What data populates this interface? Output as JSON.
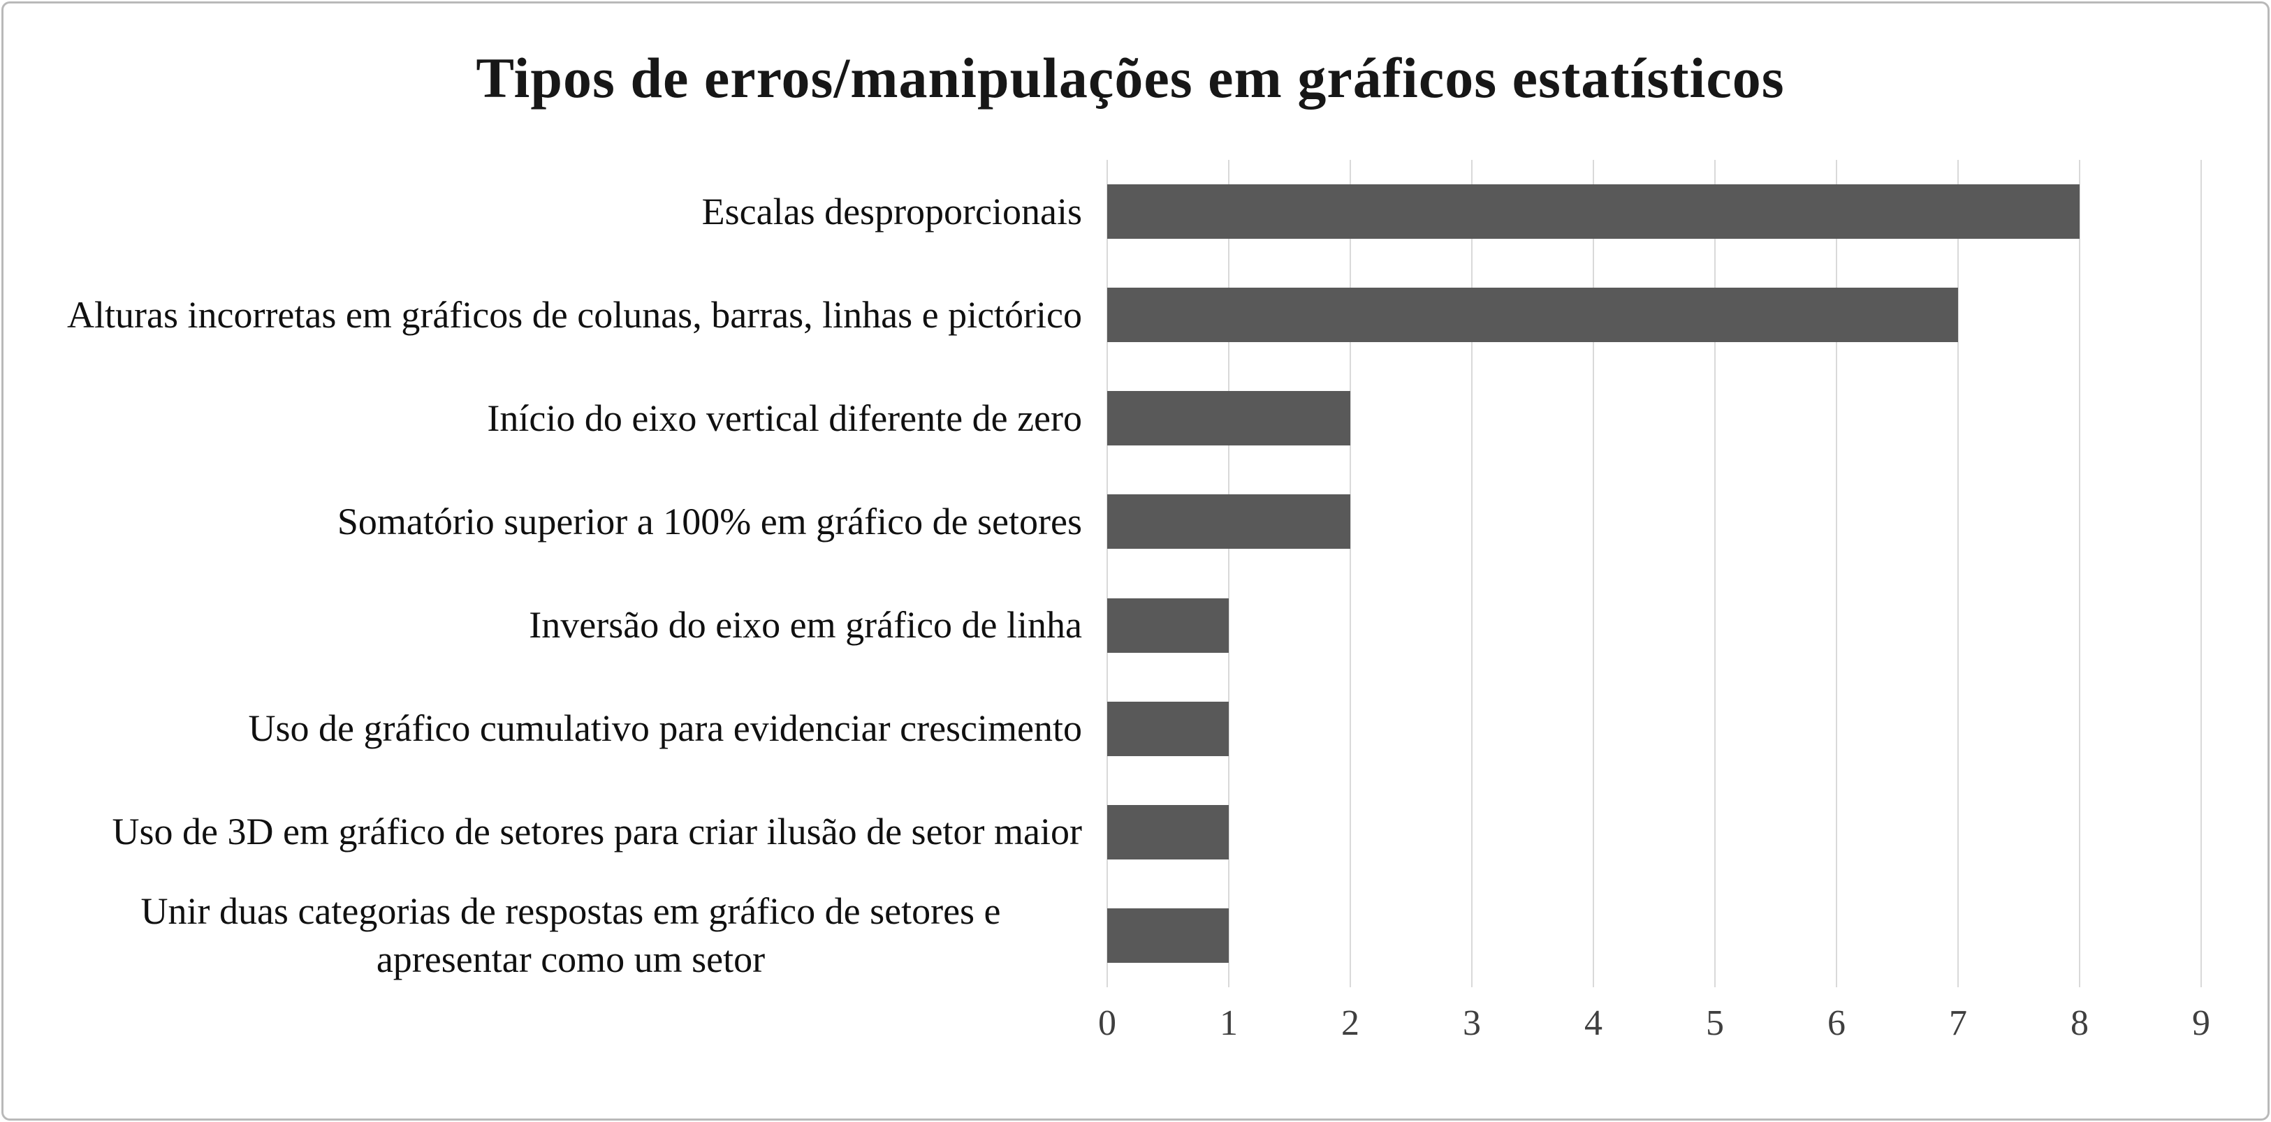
{
  "title": "Tipos de erros/manipulações em gráficos estatísticos",
  "colors": {
    "bar": "#595959",
    "gridline": "#d9d9d9",
    "title_text": "#171717",
    "label_text": "#101010",
    "tick_text": "#3f3f3f",
    "frame_border": "#b9b9b9",
    "background": "#ffffff"
  },
  "chart_data": {
    "type": "bar",
    "orientation": "horizontal",
    "title": "Tipos de erros/manipulações em gráficos estatísticos",
    "categories": [
      "Escalas desproporcionais",
      "Alturas incorretas em gráficos de colunas, barras, linhas e pictórico",
      "Início do eixo vertical diferente de zero",
      "Somatório superior a 100% em gráfico de setores",
      "Inversão do eixo em gráfico de linha",
      "Uso de gráfico cumulativo para evidenciar crescimento",
      "Uso de 3D em gráfico de setores para criar ilusão de setor maior",
      "Unir duas categorias de respostas em gráfico de setores e apresentar como um setor"
    ],
    "values": [
      8,
      7,
      2,
      2,
      1,
      1,
      1,
      1
    ],
    "xlabel": "",
    "ylabel": "",
    "xlim": [
      0,
      9
    ],
    "x_ticks": [
      0,
      1,
      2,
      3,
      4,
      5,
      6,
      7,
      8,
      9
    ],
    "grid": "vertical",
    "legend": "none"
  }
}
